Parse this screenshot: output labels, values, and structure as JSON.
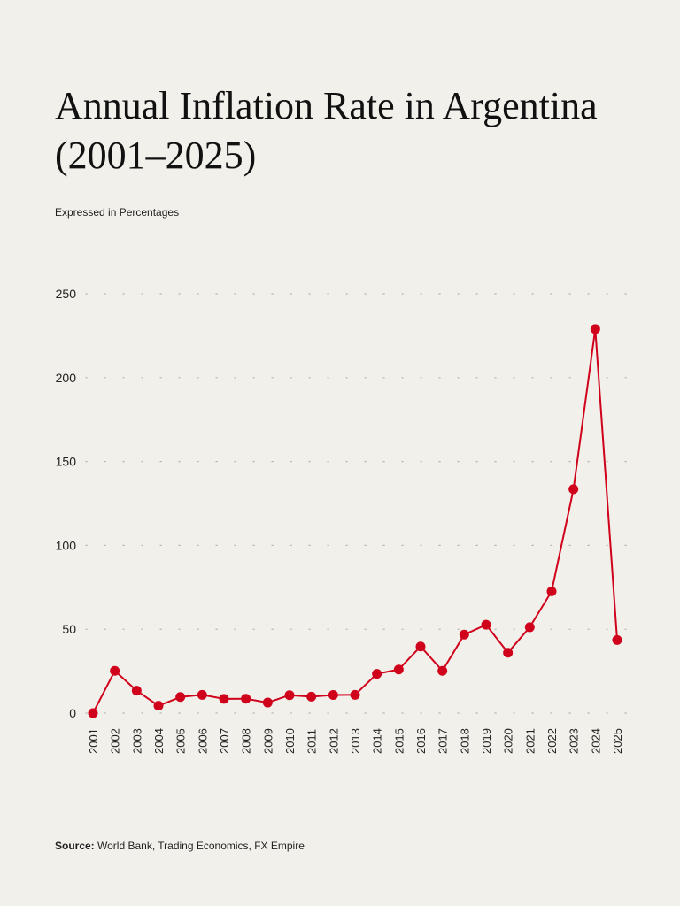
{
  "header": {
    "title_line1": "Annual Inflation Rate in Argentina",
    "title_line2": "(2001–2025)",
    "subtitle": "Expressed in Percentages"
  },
  "footer": {
    "source_label": "Source:",
    "source_text": " World Bank, Trading Economics, FX Empire"
  },
  "colors": {
    "line": "#d0021b",
    "grid": "#b5b3ae",
    "background": "#f2f0eb"
  },
  "chart_data": {
    "type": "line",
    "title": "Annual Inflation Rate in Argentina (2001–2025)",
    "subtitle": "Expressed in Percentages",
    "xlabel": "",
    "ylabel": "",
    "x": [
      "2001",
      "2002",
      "2003",
      "2004",
      "2005",
      "2006",
      "2007",
      "2008",
      "2009",
      "2010",
      "2011",
      "2012",
      "2013",
      "2014",
      "2015",
      "2016",
      "2017",
      "2018",
      "2019",
      "2020",
      "2021",
      "2022",
      "2023",
      "2024",
      "2025"
    ],
    "series": [
      {
        "name": "Annual Inflation Rate (%)",
        "values": [
          0,
          25.2,
          13.4,
          4.4,
          9.6,
          10.9,
          8.5,
          8.6,
          6.3,
          10.7,
          9.8,
          10.8,
          10.9,
          23.4,
          26.0,
          39.7,
          25.2,
          46.8,
          52.7,
          36.0,
          51.2,
          72.6,
          133.5,
          229,
          43.6
        ]
      }
    ],
    "ylim": [
      0,
      250
    ],
    "yticks": [
      0,
      50,
      100,
      150,
      200,
      250
    ],
    "grid": "horizontal-dotted",
    "legend": "none",
    "source": "World Bank, Trading Economics, FX Empire"
  }
}
